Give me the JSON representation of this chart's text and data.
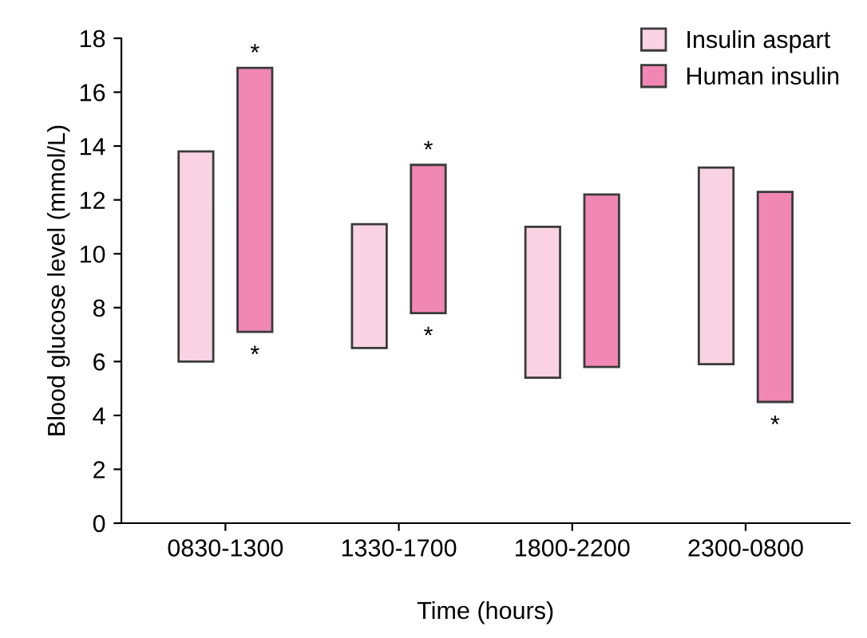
{
  "chart_data": {
    "type": "bar",
    "xlabel": "Time (hours)",
    "ylabel": "Blood glucose level (mmol/L)",
    "categories": [
      "0830-1300",
      "1330-1700",
      "1800-2200",
      "2300-0800"
    ],
    "series": [
      {
        "name": "Insulin aspart",
        "color": "#f9d3e3",
        "base": [
          6.0,
          6.5,
          5.4,
          5.9
        ],
        "values": [
          7.8,
          4.6,
          5.6,
          7.3
        ]
      },
      {
        "name": "Human insulin",
        "color": "#f088b3",
        "base": [
          7.1,
          7.8,
          5.8,
          4.5
        ],
        "values": [
          9.8,
          5.5,
          6.4,
          7.8
        ]
      }
    ],
    "annotations": [
      "*",
      "*",
      "*",
      "*",
      "*"
    ],
    "ylim": [
      0,
      18
    ],
    "yticks": [
      0,
      2,
      4,
      6,
      8,
      10,
      12,
      14,
      16,
      18
    ],
    "legend": "top right",
    "grid": false
  }
}
